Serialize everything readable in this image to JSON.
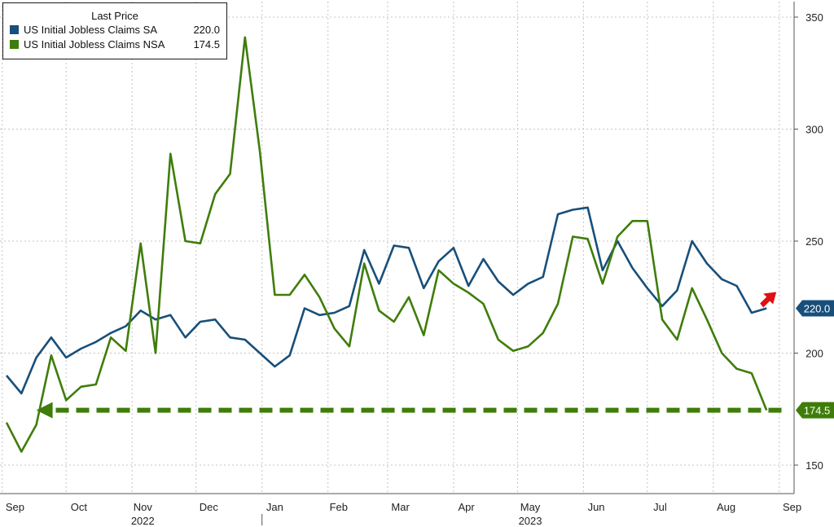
{
  "legend": {
    "title": "Last Price",
    "items": [
      {
        "label": "US Initial Jobless Claims SA",
        "value": "220.0",
        "color": "#184f7a"
      },
      {
        "label": "US Initial Jobless Claims NSA",
        "value": "174.5",
        "color": "#3f7d0a"
      }
    ]
  },
  "chart_data": {
    "type": "line",
    "ylim": [
      140,
      355
    ],
    "yticks": [
      150,
      200,
      250,
      300,
      350
    ],
    "grid": true,
    "legend_position": "top-left",
    "x_start": "2022-09-03",
    "x_step_days": 7,
    "month_labels": [
      {
        "label": "Sep",
        "date": "2022-09-07"
      },
      {
        "label": "Oct",
        "date": "2022-10-07"
      },
      {
        "label": "Nov",
        "date": "2022-11-06"
      },
      {
        "label": "Dec",
        "date": "2022-12-07"
      },
      {
        "label": "Jan",
        "date": "2023-01-07"
      },
      {
        "label": "Feb",
        "date": "2023-02-06"
      },
      {
        "label": "Mar",
        "date": "2023-03-07"
      },
      {
        "label": "Apr",
        "date": "2023-04-07"
      },
      {
        "label": "May",
        "date": "2023-05-07"
      },
      {
        "label": "Jun",
        "date": "2023-06-07"
      },
      {
        "label": "Jul",
        "date": "2023-07-07"
      },
      {
        "label": "Aug",
        "date": "2023-08-07"
      },
      {
        "label": "Sep",
        "date": "2023-09-07"
      }
    ],
    "year_labels": [
      {
        "label": "2022",
        "date": "2022-11-06"
      },
      {
        "label": "2023",
        "date": "2023-05-07"
      }
    ],
    "year_divider_date": "2023-01-01",
    "series": [
      {
        "name": "US Initial Jobless Claims SA",
        "color": "#184f7a",
        "last_value_label": "220.0",
        "values": [
          190,
          182,
          198,
          207,
          198,
          202,
          205,
          209,
          212,
          219,
          215,
          217,
          207,
          214,
          215,
          207,
          206,
          200,
          194,
          199,
          220,
          217,
          218,
          221,
          246,
          231,
          248,
          247,
          229,
          241,
          247,
          230,
          242,
          232,
          226,
          231,
          234,
          262,
          264,
          265,
          237,
          250,
          238,
          229,
          221,
          228,
          250,
          240,
          233,
          230,
          218,
          220
        ]
      },
      {
        "name": "US Initial Jobless Claims NSA",
        "color": "#3f7d0a",
        "last_value_label": "174.5",
        "values": [
          169,
          156,
          168,
          199,
          179,
          185,
          186,
          207,
          201,
          249,
          200,
          289,
          250,
          249,
          271,
          280,
          341,
          290,
          226,
          226,
          235,
          225,
          211,
          203,
          240,
          219,
          214,
          225,
          208,
          237,
          231,
          227,
          222,
          206,
          201,
          203,
          209,
          222,
          252,
          251,
          231,
          252,
          259,
          259,
          215,
          206,
          229,
          215,
          200,
          193,
          191,
          174.5
        ]
      }
    ],
    "reference_arrow": {
      "value": 174.5,
      "from_date": "2023-09-02",
      "to_date": "2022-09-17",
      "color": "#3f7d0a"
    },
    "trend_arrow_color": "#e01010"
  }
}
